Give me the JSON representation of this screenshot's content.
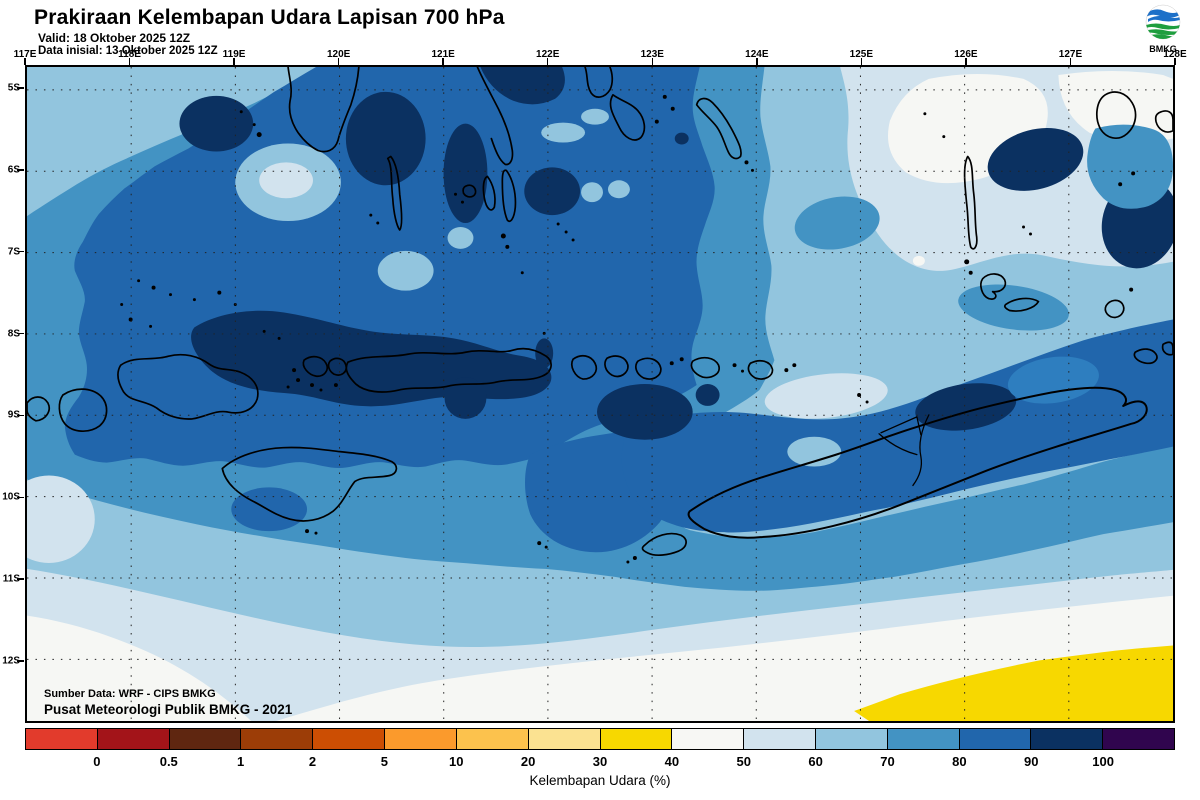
{
  "header": {
    "title": "Prakiraan Kelembapan Udara Lapisan 700 hPa",
    "valid": "Valid: 18 Oktober 2025 12Z",
    "init": "Data inisial: 13 Oktober 2025 12Z",
    "logo_label": "BMKG"
  },
  "axes": {
    "lon_labels": [
      "117E",
      "118E",
      "119E",
      "120E",
      "121E",
      "122E",
      "123E",
      "124E",
      "125E",
      "126E",
      "127E",
      "128E"
    ],
    "lat_labels": [
      "5S",
      "6S",
      "7S",
      "8S",
      "9S",
      "10S",
      "11S",
      "12S"
    ]
  },
  "colorbar": {
    "ticks": [
      "0",
      "0.5",
      "1",
      "2",
      "5",
      "10",
      "20",
      "30",
      "40",
      "50",
      "60",
      "70",
      "80",
      "90",
      "100"
    ],
    "colors": [
      "#e23b2c",
      "#a31419",
      "#5f2610",
      "#9c3d07",
      "#cc4e03",
      "#fb9a2c",
      "#fcc24d",
      "#fbe291",
      "#f7d800",
      "#f7f7f4",
      "#d2e3ee",
      "#92c5de",
      "#4393c3",
      "#2166ac",
      "#0b3161",
      "#30054e"
    ],
    "caption": "Kelembapan Udara (%)"
  },
  "source": {
    "line1": "Sumber Data: WRF - CIPS BMKG",
    "line2": "Pusat Meteorologi Publik BMKG -  2021"
  },
  "map_palette": {
    "light_60_70": "#92c5de",
    "pale_50_60": "#d2e3ee",
    "white_40_50": "#f6f7f4",
    "yellow_30_40": "#f7d800",
    "steel_70_80": "#4393c3",
    "blue_80_90": "#2166ac",
    "navy_90_100": "#0b3161",
    "blue_mid": "#2e7ebf"
  },
  "logo_colors": {
    "blue": "#1d70c8",
    "green": "#1e9e3e"
  }
}
